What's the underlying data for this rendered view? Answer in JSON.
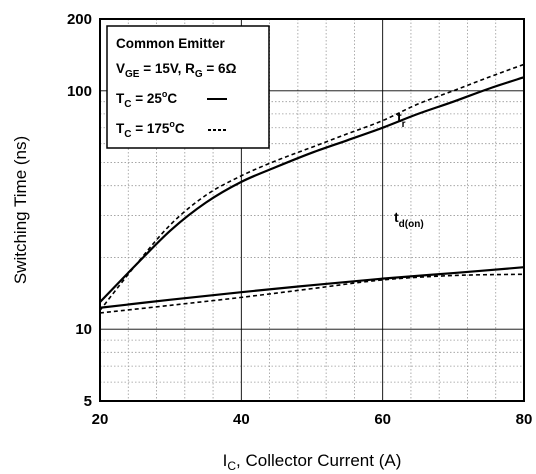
{
  "chart_data": {
    "type": "line",
    "title": "",
    "xlabel": {
      "main": "I",
      "sub": "C",
      "rest": ", Collector Current (A)"
    },
    "ylabel": "Switching Time (ns)",
    "x_scale": "linear",
    "y_scale": "log",
    "xlim": [
      20,
      80
    ],
    "ylim": [
      5,
      200
    ],
    "x_ticks": [
      "20",
      "40",
      "60",
      "80"
    ],
    "y_ticks": [
      {
        "value": 5,
        "label": "5"
      },
      {
        "value": 10,
        "label": "10"
      },
      {
        "value": 100,
        "label": "100"
      },
      {
        "value": 200,
        "label": "200"
      }
    ],
    "grid": true,
    "legend": {
      "placement": "top-left",
      "line1": "Common Emitter",
      "line2": {
        "v": "V",
        "v_sub": "GE",
        "v_rest": " = 15V, R",
        "r_sub": "G",
        "r_rest": " = 6Ω"
      },
      "line3": {
        "t": "T",
        "t_sub": "C",
        "t_rest": " = 25",
        "deg": "o",
        "unit": "C"
      },
      "line4": {
        "t": "T",
        "t_sub": "C",
        "t_rest": " = 175",
        "deg": "o",
        "unit": "C"
      }
    },
    "curve_labels": {
      "tr": {
        "main": "t",
        "sub": "r"
      },
      "tdon": {
        "main": "t",
        "sub": "d(on)"
      }
    },
    "series": [
      {
        "name": "t_r T_C = 25°C",
        "style": "solid",
        "x": [
          20,
          25,
          30,
          35,
          40,
          45,
          50,
          55,
          60,
          65,
          70,
          75,
          80
        ],
        "y": [
          13,
          18.5,
          26,
          34,
          41.5,
          48,
          55,
          62,
          70,
          80,
          90,
          102,
          114
        ]
      },
      {
        "name": "t_r T_C = 175°C",
        "style": "dashed",
        "x": [
          20,
          25,
          30,
          35,
          40,
          45,
          50,
          55,
          60,
          65,
          70,
          75,
          80
        ],
        "y": [
          12,
          18.5,
          27.5,
          36.5,
          44,
          51,
          58,
          66,
          75,
          88,
          100,
          114,
          129
        ]
      },
      {
        "name": "t_d(on) T_C = 25°C",
        "style": "solid",
        "x": [
          20,
          30,
          40,
          50,
          60,
          70,
          80
        ],
        "y": [
          12.3,
          13.3,
          14.3,
          15.3,
          16.3,
          17.2,
          18.2
        ]
      },
      {
        "name": "t_d(on) T_C = 175°C",
        "style": "dashed",
        "x": [
          20,
          30,
          40,
          50,
          60,
          70,
          80
        ],
        "y": [
          11.7,
          12.6,
          13.6,
          14.8,
          16.1,
          16.8,
          17.0
        ]
      }
    ]
  }
}
